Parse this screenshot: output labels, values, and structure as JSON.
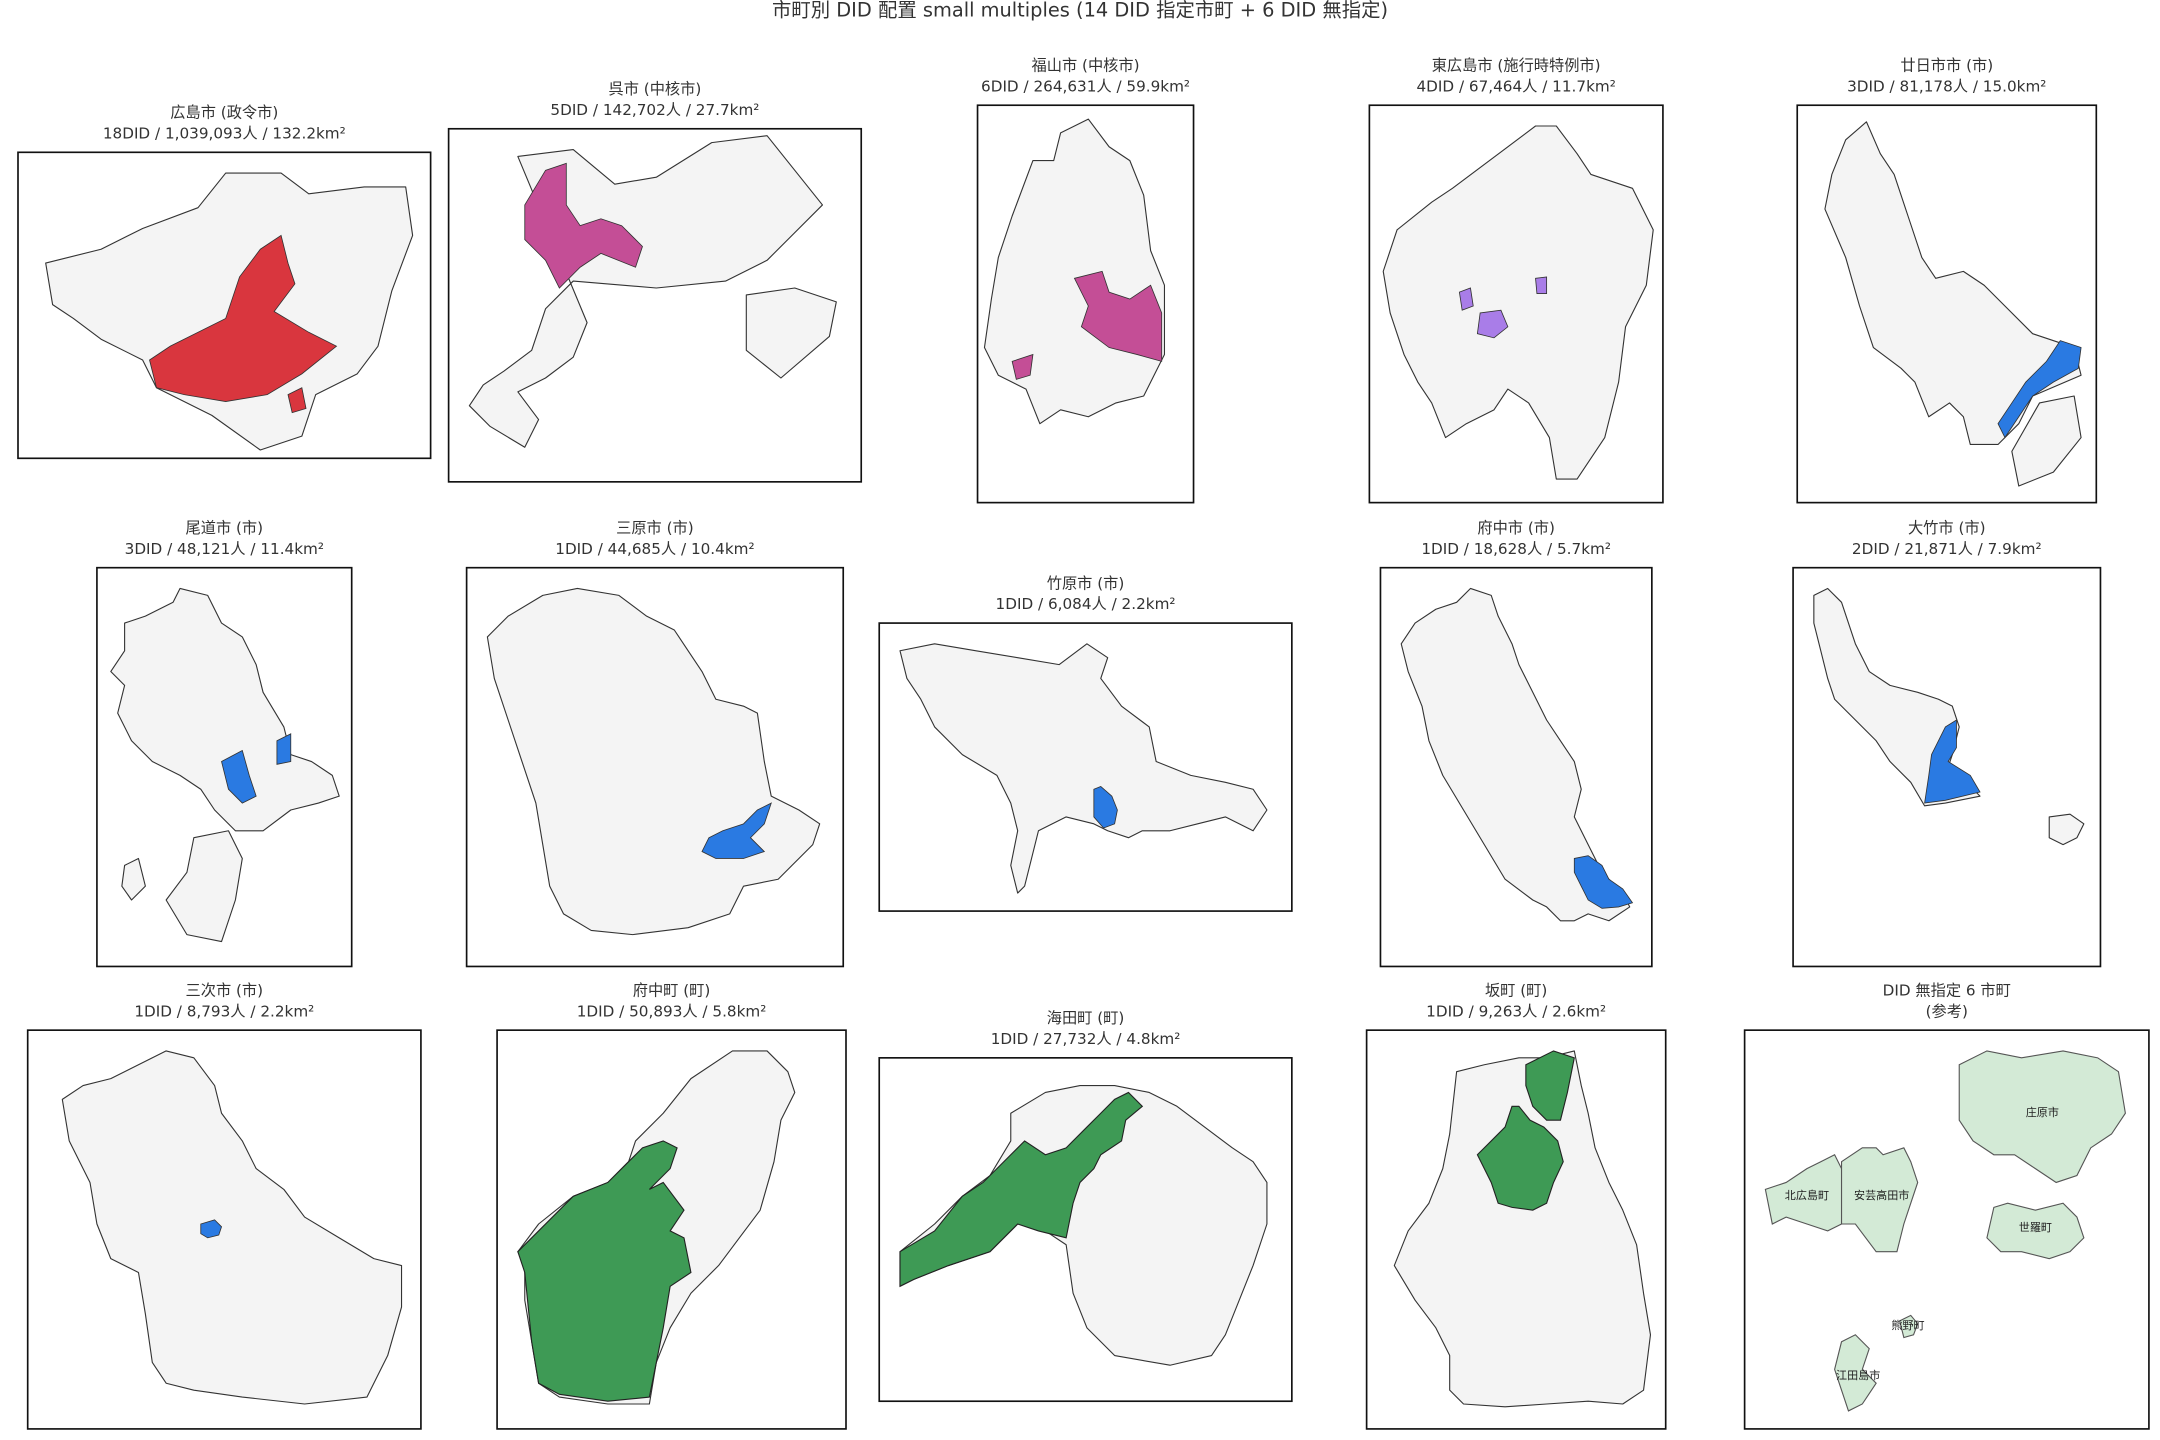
{
  "title": "市町別 DID 配置 small multiples (14 DID 指定市町 + 6 DID 無指定)",
  "panels": [
    {
      "title": "広島市 (政令市)",
      "subtitle": "18DID / 1,039,093人 / 132.2km²"
    },
    {
      "title": "呉市 (中核市)",
      "subtitle": "5DID / 142,702人 / 27.7km²"
    },
    {
      "title": "福山市 (中核市)",
      "subtitle": "6DID / 264,631人 / 59.9km²"
    },
    {
      "title": "東広島市 (施行時特例市)",
      "subtitle": "4DID / 67,464人 / 11.7km²"
    },
    {
      "title": "廿日市市 (市)",
      "subtitle": "3DID / 81,178人 / 15.0km²"
    },
    {
      "title": "尾道市 (市)",
      "subtitle": "3DID / 48,121人 / 11.4km²"
    },
    {
      "title": "三原市 (市)",
      "subtitle": "1DID / 44,685人 / 10.4km²"
    },
    {
      "title": "竹原市 (市)",
      "subtitle": "1DID / 6,084人 / 2.2km²"
    },
    {
      "title": "府中市 (市)",
      "subtitle": "1DID / 18,628人 / 5.7km²"
    },
    {
      "title": "大竹市 (市)",
      "subtitle": "2DID / 21,871人 / 7.9km²"
    },
    {
      "title": "三次市 (市)",
      "subtitle": "1DID / 8,793人 / 2.2km²"
    },
    {
      "title": "府中町 (町)",
      "subtitle": "1DID / 50,893人 / 5.8km²"
    },
    {
      "title": "海田町 (町)",
      "subtitle": "1DID / 27,732人 / 4.8km²"
    },
    {
      "title": "坂町 (町)",
      "subtitle": "1DID / 9,263人 / 2.6km²"
    },
    {
      "title": "DID 無指定 6 市町",
      "subtitle": "(参考)",
      "towns": [
        "庄原市",
        "北広島町",
        "安芸高田市",
        "世羅町",
        "熊野町",
        "江田島市"
      ]
    }
  ]
}
